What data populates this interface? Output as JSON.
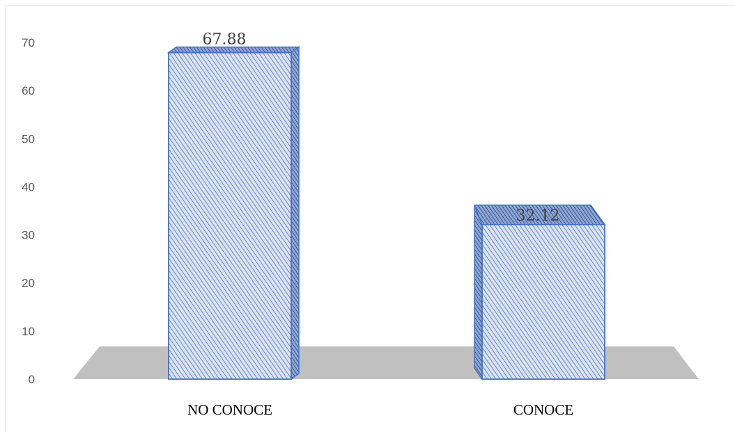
{
  "chart_data": {
    "type": "bar",
    "categories": [
      "NO CONOCE",
      "CONOCE"
    ],
    "values": [
      67.88,
      32.12
    ],
    "data_labels": [
      "67.88",
      "32.12"
    ],
    "ylim": [
      0,
      70
    ],
    "yticks": [
      "0",
      "10",
      "20",
      "30",
      "40",
      "50",
      "60",
      "70"
    ],
    "title": "",
    "xlabel": "",
    "ylabel": "",
    "style": "3d-column",
    "grid": false,
    "legend": "none",
    "colors": {
      "bar_fill": "#dae3f3",
      "bar_hatch": "#4a6fb5",
      "bar_edge": "#4472c4",
      "floor": "#c0c0c0"
    }
  }
}
